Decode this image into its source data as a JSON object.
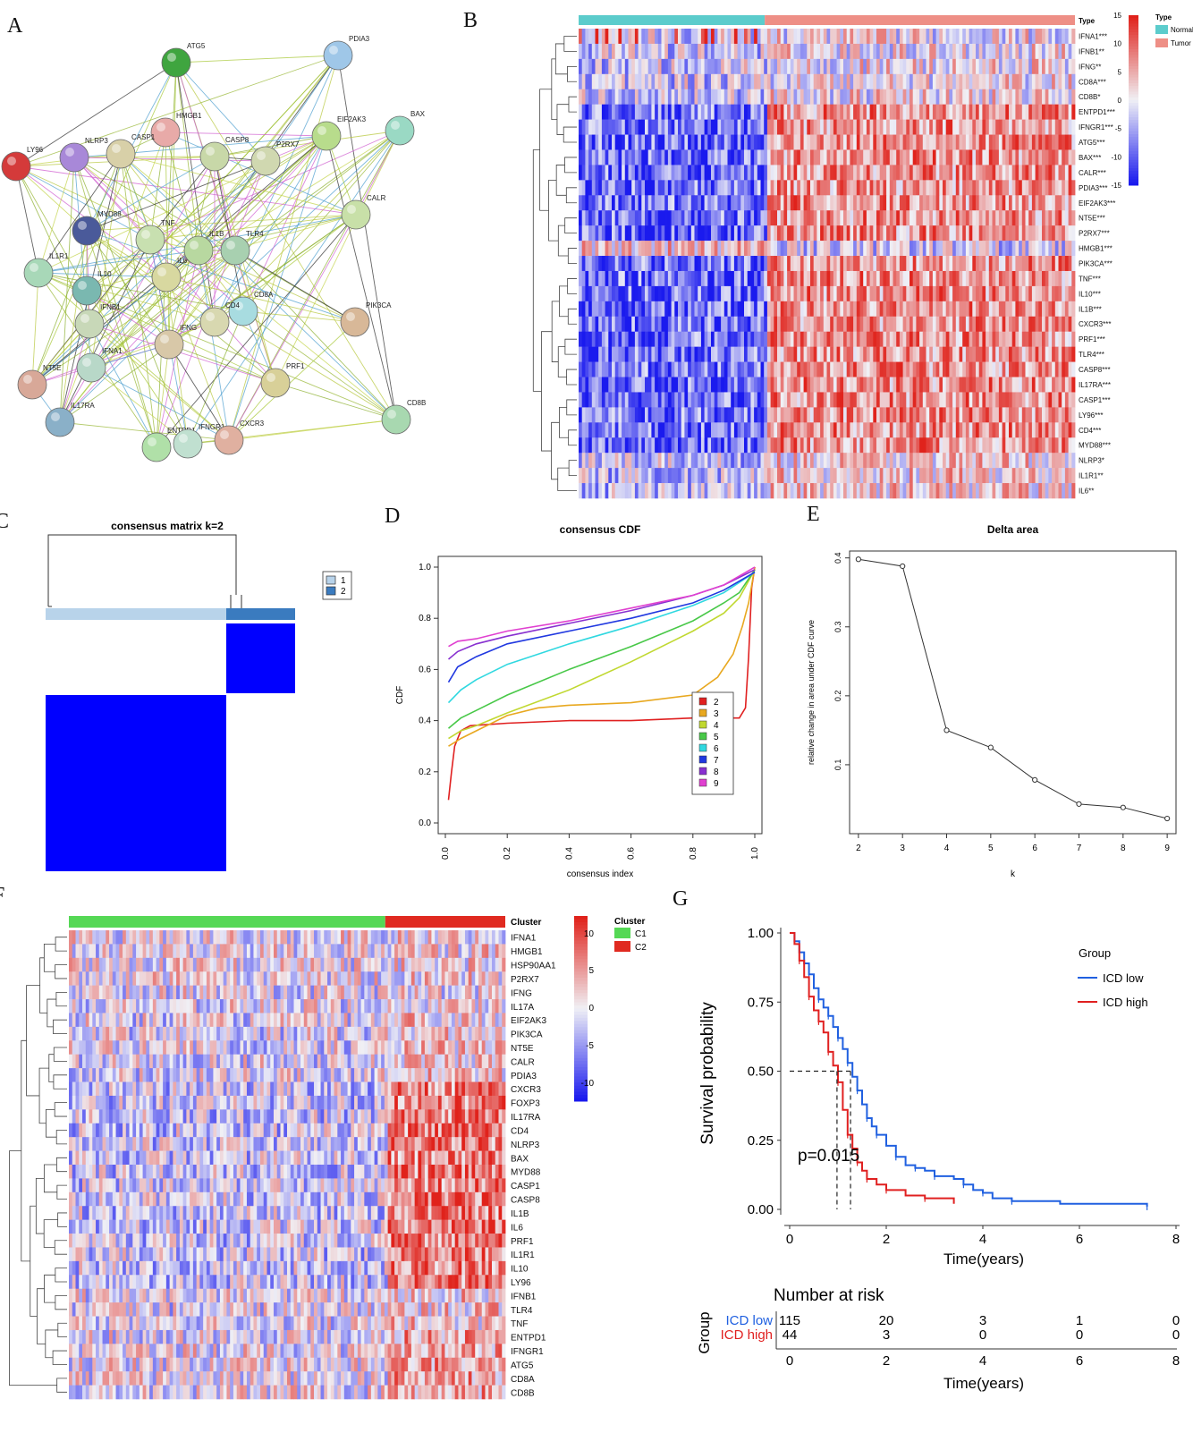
{
  "panel_labels": [
    "A",
    "B",
    "C",
    "D",
    "E",
    "F",
    "G"
  ],
  "colors": {
    "heat_low": "#1a1aee",
    "heat_mid": "#f0f0f5",
    "heat_high": "#e0221b",
    "normal": "#5ccccc",
    "tumor": "#ee8f86",
    "c1": "#55d855",
    "c2": "#e02a20",
    "cons_light": "#b8d3ea",
    "cons_dark": "#3a7bbf",
    "cons_blue": "#0000ff",
    "icd_low": "#2060e0",
    "icd_high": "#e02020"
  },
  "network": {
    "nodes": [
      {
        "label": "ATG5",
        "color": "#3fa53f"
      },
      {
        "label": "PDIA3",
        "color": "#9fc7e8"
      },
      {
        "label": "BAX",
        "color": "#9ad9c4"
      },
      {
        "label": "HMGB1",
        "color": "#e8aaa8"
      },
      {
        "label": "EIF2AK3",
        "color": "#b8dc8c"
      },
      {
        "label": "LY96",
        "color": "#d43a3a"
      },
      {
        "label": "NLRP3",
        "color": "#a888d8"
      },
      {
        "label": "CASP1",
        "color": "#d8d0a8"
      },
      {
        "label": "CASP8",
        "color": "#c8d8a8"
      },
      {
        "label": "P2RX7",
        "color": "#d0d8b0"
      },
      {
        "label": "CALR",
        "color": "#c8e0a8"
      },
      {
        "label": "MYD88",
        "color": "#4a5a9a"
      },
      {
        "label": "TNF",
        "color": "#c8e0b0"
      },
      {
        "label": "IL1B",
        "color": "#b8d8a0"
      },
      {
        "label": "TLR4",
        "color": "#a8d0b0"
      },
      {
        "label": "IL1R1",
        "color": "#a8d8b8"
      },
      {
        "label": "IL10",
        "color": "#7ab8b0"
      },
      {
        "label": "IL6",
        "color": "#d8d8a0"
      },
      {
        "label": "CD8A",
        "color": "#a8dce0"
      },
      {
        "label": "CD4",
        "color": "#d8d8b0"
      },
      {
        "label": "IFNB1",
        "color": "#c8d8b8"
      },
      {
        "label": "IFNG",
        "color": "#d8c8a8"
      },
      {
        "label": "PIK3CA",
        "color": "#d8b898"
      },
      {
        "label": "NT5E",
        "color": "#d8a898"
      },
      {
        "label": "IFNA1",
        "color": "#b8d8c8"
      },
      {
        "label": "PRF1",
        "color": "#d8d098"
      },
      {
        "label": "IL17RA",
        "color": "#8ab0c8"
      },
      {
        "label": "CD8B",
        "color": "#a8d8b0"
      },
      {
        "label": "ENTPD1",
        "color": "#b0e0a8"
      },
      {
        "label": "IFNGR1",
        "color": "#c0e0d0"
      },
      {
        "label": "CXCR3",
        "color": "#e0b0a0"
      }
    ]
  },
  "heatmap_b": {
    "genes": [
      "IFNA1***",
      "IFNB1**",
      "IFNG**",
      "CD8A***",
      "CD8B*",
      "ENTPD1***",
      "IFNGR1***",
      "ATG5***",
      "BAX***",
      "CALR***",
      "PDIA3***",
      "EIF2AK3***",
      "NT5E***",
      "P2RX7***",
      "HMGB1***",
      "PIK3CA***",
      "TNF***",
      "IL10***",
      "IL1B***",
      "CXCR3***",
      "PRF1***",
      "TLR4***",
      "CASP8***",
      "IL17RA***",
      "CASP1***",
      "LY96***",
      "CD4***",
      "MYD88***",
      "NLRP3*",
      "IL1R1**",
      "IL6**"
    ],
    "annotation_title": "Type",
    "legend_title": "Type",
    "legend_items": [
      "Normal",
      "Tumor"
    ],
    "colorbar_ticks": [
      "15",
      "10",
      "5",
      "0",
      "-5",
      "-10",
      "-15"
    ]
  },
  "panel_c": {
    "title": "consensus matrix k=2",
    "legend_items": [
      "1",
      "2"
    ]
  },
  "chart_data": [
    {
      "type": "line",
      "id": "D",
      "title": "consensus CDF",
      "xlabel": "consensus index",
      "ylabel": "CDF",
      "xlim": [
        0,
        1
      ],
      "ylim": [
        0,
        1
      ],
      "x_ticks": [
        "0.0",
        "0.2",
        "0.4",
        "0.6",
        "0.8",
        "1.0"
      ],
      "y_ticks": [
        "0.0",
        "0.2",
        "0.4",
        "0.6",
        "0.8",
        "1.0"
      ],
      "legend_placement": "bottom-right",
      "series": [
        {
          "name": "2",
          "color": "#e02020",
          "points": [
            [
              0.01,
              0.09
            ],
            [
              0.02,
              0.2
            ],
            [
              0.03,
              0.3
            ],
            [
              0.05,
              0.36
            ],
            [
              0.08,
              0.38
            ],
            [
              0.2,
              0.39
            ],
            [
              0.4,
              0.4
            ],
            [
              0.6,
              0.4
            ],
            [
              0.8,
              0.41
            ],
            [
              0.95,
              0.41
            ],
            [
              0.97,
              0.45
            ],
            [
              0.98,
              0.65
            ],
            [
              0.99,
              0.92
            ],
            [
              1.0,
              1.0
            ]
          ]
        },
        {
          "name": "3",
          "color": "#e8a820",
          "points": [
            [
              0.01,
              0.3
            ],
            [
              0.05,
              0.33
            ],
            [
              0.1,
              0.36
            ],
            [
              0.2,
              0.42
            ],
            [
              0.3,
              0.45
            ],
            [
              0.4,
              0.46
            ],
            [
              0.6,
              0.47
            ],
            [
              0.8,
              0.5
            ],
            [
              0.88,
              0.57
            ],
            [
              0.93,
              0.66
            ],
            [
              0.96,
              0.77
            ],
            [
              0.98,
              0.86
            ],
            [
              1.0,
              1.0
            ]
          ]
        },
        {
          "name": "4",
          "color": "#c0d830",
          "points": [
            [
              0.01,
              0.33
            ],
            [
              0.05,
              0.36
            ],
            [
              0.1,
              0.38
            ],
            [
              0.2,
              0.43
            ],
            [
              0.4,
              0.52
            ],
            [
              0.6,
              0.63
            ],
            [
              0.8,
              0.75
            ],
            [
              0.9,
              0.82
            ],
            [
              0.95,
              0.88
            ],
            [
              1.0,
              0.99
            ]
          ]
        },
        {
          "name": "5",
          "color": "#48c848",
          "points": [
            [
              0.01,
              0.37
            ],
            [
              0.05,
              0.41
            ],
            [
              0.1,
              0.44
            ],
            [
              0.2,
              0.5
            ],
            [
              0.4,
              0.6
            ],
            [
              0.6,
              0.69
            ],
            [
              0.8,
              0.79
            ],
            [
              0.9,
              0.86
            ],
            [
              0.95,
              0.9
            ],
            [
              1.0,
              0.99
            ]
          ]
        },
        {
          "name": "6",
          "color": "#30d8e0",
          "points": [
            [
              0.01,
              0.47
            ],
            [
              0.05,
              0.52
            ],
            [
              0.1,
              0.56
            ],
            [
              0.2,
              0.62
            ],
            [
              0.4,
              0.7
            ],
            [
              0.6,
              0.77
            ],
            [
              0.8,
              0.85
            ],
            [
              0.9,
              0.9
            ],
            [
              1.0,
              0.98
            ]
          ]
        },
        {
          "name": "7",
          "color": "#2038e0",
          "points": [
            [
              0.01,
              0.55
            ],
            [
              0.04,
              0.61
            ],
            [
              0.1,
              0.65
            ],
            [
              0.2,
              0.7
            ],
            [
              0.4,
              0.75
            ],
            [
              0.6,
              0.8
            ],
            [
              0.8,
              0.86
            ],
            [
              0.9,
              0.91
            ],
            [
              1.0,
              0.98
            ]
          ]
        },
        {
          "name": "8",
          "color": "#8830d0",
          "points": [
            [
              0.01,
              0.64
            ],
            [
              0.04,
              0.67
            ],
            [
              0.1,
              0.7
            ],
            [
              0.2,
              0.73
            ],
            [
              0.4,
              0.78
            ],
            [
              0.6,
              0.83
            ],
            [
              0.8,
              0.89
            ],
            [
              0.9,
              0.93
            ],
            [
              1.0,
              0.99
            ]
          ]
        },
        {
          "name": "9",
          "color": "#e040d0",
          "points": [
            [
              0.01,
              0.69
            ],
            [
              0.04,
              0.71
            ],
            [
              0.1,
              0.72
            ],
            [
              0.2,
              0.75
            ],
            [
              0.4,
              0.79
            ],
            [
              0.6,
              0.84
            ],
            [
              0.8,
              0.89
            ],
            [
              0.9,
              0.93
            ],
            [
              1.0,
              1.0
            ]
          ]
        }
      ]
    },
    {
      "type": "line",
      "id": "E",
      "title": "Delta area",
      "xlabel": "k",
      "ylabel": "relative change in area under CDF curve",
      "x": [
        2,
        3,
        4,
        5,
        6,
        7,
        8,
        9
      ],
      "values": [
        0.398,
        0.388,
        0.15,
        0.125,
        0.078,
        0.043,
        0.038,
        0.022
      ],
      "xlim": [
        1.8,
        9.2
      ],
      "ylim": [
        0.0,
        0.41
      ],
      "x_ticks": [
        "2",
        "3",
        "4",
        "5",
        "6",
        "7",
        "8",
        "9"
      ],
      "y_ticks": [
        "0.1",
        "0.2",
        "0.3",
        "0.4"
      ]
    },
    {
      "type": "line",
      "id": "G",
      "ylabel": "Survival probability",
      "xlabel": "Time(years)",
      "xlim": [
        0,
        8
      ],
      "ylim": [
        0,
        1
      ],
      "x_ticks": [
        "0",
        "2",
        "4",
        "6",
        "8"
      ],
      "y_ticks": [
        "0.00",
        "0.25",
        "0.50",
        "0.75",
        "1.00"
      ],
      "legend_title": "Group",
      "legend_placement": "top-right",
      "annotation": "p=0.015",
      "median_survival": {
        "ICD high": 0.98,
        "ICD low": 1.26
      },
      "series": [
        {
          "name": "ICD low",
          "color": "#2060e0",
          "points": [
            [
              0,
              1.0
            ],
            [
              0.1,
              0.97
            ],
            [
              0.2,
              0.93
            ],
            [
              0.3,
              0.89
            ],
            [
              0.4,
              0.85
            ],
            [
              0.5,
              0.8
            ],
            [
              0.6,
              0.76
            ],
            [
              0.7,
              0.73
            ],
            [
              0.8,
              0.7
            ],
            [
              0.9,
              0.66
            ],
            [
              1.0,
              0.62
            ],
            [
              1.1,
              0.58
            ],
            [
              1.2,
              0.53
            ],
            [
              1.3,
              0.48
            ],
            [
              1.4,
              0.43
            ],
            [
              1.5,
              0.38
            ],
            [
              1.6,
              0.33
            ],
            [
              1.7,
              0.3
            ],
            [
              1.8,
              0.27
            ],
            [
              2.0,
              0.23
            ],
            [
              2.2,
              0.19
            ],
            [
              2.4,
              0.16
            ],
            [
              2.6,
              0.15
            ],
            [
              2.8,
              0.14
            ],
            [
              3.0,
              0.12
            ],
            [
              3.4,
              0.11
            ],
            [
              3.6,
              0.09
            ],
            [
              3.8,
              0.07
            ],
            [
              4.0,
              0.06
            ],
            [
              4.2,
              0.04
            ],
            [
              4.6,
              0.03
            ],
            [
              5.6,
              0.02
            ],
            [
              7.4,
              0.01
            ]
          ]
        },
        {
          "name": "ICD high",
          "color": "#e02020",
          "points": [
            [
              0,
              1.0
            ],
            [
              0.1,
              0.96
            ],
            [
              0.2,
              0.9
            ],
            [
              0.3,
              0.84
            ],
            [
              0.4,
              0.77
            ],
            [
              0.5,
              0.72
            ],
            [
              0.6,
              0.68
            ],
            [
              0.7,
              0.64
            ],
            [
              0.8,
              0.57
            ],
            [
              0.9,
              0.52
            ],
            [
              1.0,
              0.46
            ],
            [
              1.1,
              0.36
            ],
            [
              1.2,
              0.27
            ],
            [
              1.3,
              0.22
            ],
            [
              1.4,
              0.17
            ],
            [
              1.5,
              0.14
            ],
            [
              1.6,
              0.11
            ],
            [
              1.8,
              0.09
            ],
            [
              2.0,
              0.07
            ],
            [
              2.4,
              0.05
            ],
            [
              2.8,
              0.04
            ],
            [
              3.4,
              0.02
            ]
          ]
        }
      ],
      "risk_table": {
        "title": "Number at risk",
        "ylabel": "Group",
        "xlabel": "Time(years)",
        "times": [
          0,
          2,
          4,
          6,
          8
        ],
        "rows": [
          {
            "group": "ICD low",
            "counts": [
              "115",
              "20",
              "3",
              "1",
              "0"
            ]
          },
          {
            "group": "ICD high",
            "counts": [
              "44",
              "3",
              "0",
              "0",
              "0"
            ]
          }
        ]
      }
    }
  ],
  "heatmap_f": {
    "genes": [
      "IFNA1",
      "HMGB1",
      "HSP90AA1",
      "P2RX7",
      "IFNG",
      "IL17A",
      "EIF2AK3",
      "PIK3CA",
      "NT5E",
      "CALR",
      "PDIA3",
      "CXCR3",
      "FOXP3",
      "IL17RA",
      "CD4",
      "NLRP3",
      "BAX",
      "MYD88",
      "CASP1",
      "CASP8",
      "IL1B",
      "IL6",
      "PRF1",
      "IL1R1",
      "IL10",
      "LY96",
      "IFNB1",
      "TLR4",
      "TNF",
      "ENTPD1",
      "IFNGR1",
      "ATG5",
      "CD8A",
      "CD8B"
    ],
    "annotation_title": "Cluster",
    "legend_title": "Cluster",
    "legend_items": [
      "C1",
      "C2"
    ],
    "colorbar_ticks": [
      "10",
      "5",
      "0",
      "-5",
      "-10"
    ]
  }
}
